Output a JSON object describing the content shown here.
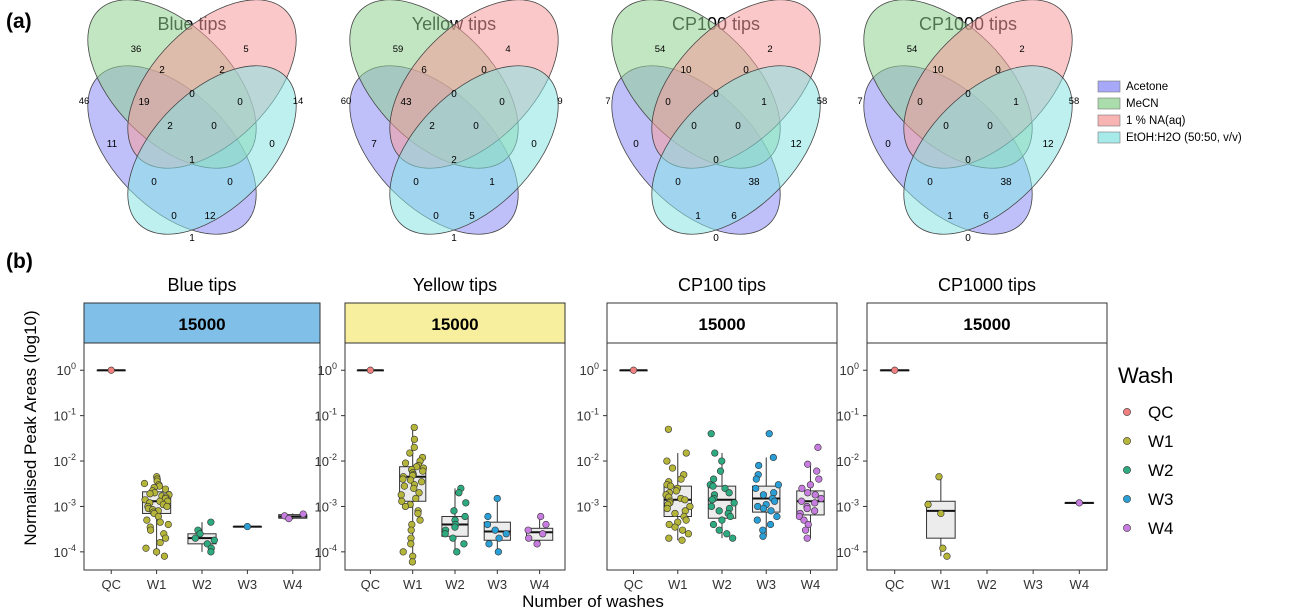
{
  "panel_a": {
    "label": "(a)",
    "legend": [
      {
        "name": "Acetone",
        "color": "#8a8cf5"
      },
      {
        "name": "MeCN",
        "color": "#8fd08f"
      },
      {
        "name": "1 % NA(aq)",
        "color": "#f59a9a"
      },
      {
        "name": "EtOH:H2O (50:50, v/v)",
        "color": "#88e3e3"
      }
    ]
  },
  "panel_b": {
    "label": "(b)",
    "ylabel": "Normalised Peak Areas (log10)",
    "xlabel": "Number of washes",
    "legend_title": "Wash",
    "legend": [
      {
        "name": "QC",
        "color": "#f08080"
      },
      {
        "name": "W1",
        "color": "#b5b53a"
      },
      {
        "name": "W2",
        "color": "#2eaa7f"
      },
      {
        "name": "W3",
        "color": "#2a9fd6"
      },
      {
        "name": "W4",
        "color": "#c77ddf"
      }
    ]
  },
  "chart_data": [
    {
      "type": "venn",
      "title": "Blue tips",
      "sets": [
        "Acetone",
        "MeCN",
        "1 % NA(aq)",
        "EtOH:H2O (50:50, v/v)"
      ],
      "set_totals": [
        46,
        36,
        5,
        14
      ],
      "regions": {
        "Acetone": 11,
        "MeCN": 2,
        "1 % NA(aq)": 2,
        "EtOH:H2O (50:50, v/v)": 0,
        "Acetone&MeCN": 19,
        "MeCN&1 % NA(aq)": 0,
        "1 % NA(aq)&EtOH:H2O (50:50, v/v)": 0,
        "Acetone&1 % NA(aq)": 0,
        "MeCN&EtOH:H2O (50:50, v/v)": 0,
        "Acetone&EtOH:H2O (50:50, v/v)": 1,
        "Acetone&MeCN&1 % NA(aq)": 2,
        "MeCN&1 % NA(aq)&EtOH:H2O (50:50, v/v)": 0,
        "Acetone&1 % NA(aq)&EtOH:H2O (50:50, v/v)": 0,
        "Acetone&MeCN&EtOH:H2O (50:50, v/v)": 12,
        "all": 1
      }
    },
    {
      "type": "venn",
      "title": "Yellow tips",
      "sets": [
        "Acetone",
        "MeCN",
        "1 % NA(aq)",
        "EtOH:H2O (50:50, v/v)"
      ],
      "set_totals": [
        60,
        59,
        4,
        9
      ],
      "regions": {
        "Acetone": 7,
        "MeCN": 6,
        "1 % NA(aq)": 0,
        "EtOH:H2O (50:50, v/v)": 0,
        "Acetone&MeCN": 43,
        "MeCN&1 % NA(aq)": 0,
        "1 % NA(aq)&EtOH:H2O (50:50, v/v)": 0,
        "Acetone&1 % NA(aq)": 0,
        "MeCN&EtOH:H2O (50:50, v/v)": 1,
        "Acetone&EtOH:H2O (50:50, v/v)": 1,
        "Acetone&MeCN&1 % NA(aq)": 2,
        "MeCN&1 % NA(aq)&EtOH:H2O (50:50, v/v)": 0,
        "Acetone&1 % NA(aq)&EtOH:H2O (50:50, v/v)": 0,
        "Acetone&MeCN&EtOH:H2O (50:50, v/v)": 5,
        "all": 2
      }
    },
    {
      "type": "venn",
      "title": "CP100 tips",
      "sets": [
        "Acetone",
        "MeCN",
        "1 % NA(aq)",
        "EtOH:H2O (50:50, v/v)"
      ],
      "set_totals": [
        7,
        54,
        2,
        58
      ],
      "regions": {
        "Acetone": 0,
        "MeCN": 10,
        "1 % NA(aq)": 0,
        "EtOH:H2O (50:50, v/v)": 12,
        "Acetone&MeCN": 0,
        "MeCN&1 % NA(aq)": 0,
        "1 % NA(aq)&EtOH:H2O (50:50, v/v)": 1,
        "Acetone&1 % NA(aq)": 0,
        "MeCN&EtOH:H2O (50:50, v/v)": 38,
        "Acetone&EtOH:H2O (50:50, v/v)": 0,
        "Acetone&MeCN&1 % NA(aq)": 0,
        "MeCN&1 % NA(aq)&EtOH:H2O (50:50, v/v)": 0,
        "Acetone&1 % NA(aq)&EtOH:H2O (50:50, v/v)": 1,
        "Acetone&MeCN&EtOH:H2O (50:50, v/v)": 6,
        "all": 0
      }
    },
    {
      "type": "venn",
      "title": "CP1000 tips",
      "sets": [
        "Acetone",
        "MeCN",
        "1 % NA(aq)",
        "EtOH:H2O (50:50, v/v)"
      ],
      "set_totals": [
        7,
        54,
        2,
        58
      ],
      "regions": {
        "Acetone": 0,
        "MeCN": 10,
        "1 % NA(aq)": 0,
        "EtOH:H2O (50:50, v/v)": 12,
        "Acetone&MeCN": 0,
        "MeCN&1 % NA(aq)": 0,
        "1 % NA(aq)&EtOH:H2O (50:50, v/v)": 1,
        "Acetone&1 % NA(aq)": 0,
        "MeCN&EtOH:H2O (50:50, v/v)": 38,
        "Acetone&EtOH:H2O (50:50, v/v)": 0,
        "Acetone&MeCN&1 % NA(aq)": 0,
        "MeCN&1 % NA(aq)&EtOH:H2O (50:50, v/v)": 0,
        "Acetone&1 % NA(aq)&EtOH:H2O (50:50, v/v)": 1,
        "Acetone&MeCN&EtOH:H2O (50:50, v/v)": 6,
        "all": 0
      }
    },
    {
      "type": "box",
      "title": "Blue tips",
      "strip": "15000",
      "strip_color": "#7fbfe8",
      "categories": [
        "QC",
        "W1",
        "W2",
        "W3",
        "W4"
      ],
      "y_scale": "log10",
      "y_ticks": [
        "10^0",
        "10^-1",
        "10^-2",
        "10^-3",
        "10^-4"
      ],
      "boxes": [
        {
          "cat": "QC",
          "q1": 1.0,
          "median": 1.0,
          "q3": 1.0,
          "lo": 1.0,
          "hi": 1.0
        },
        {
          "cat": "W1",
          "q1": 0.0007,
          "median": 0.0013,
          "q3": 0.0021,
          "lo": 8e-05,
          "hi": 0.0045
        },
        {
          "cat": "W2",
          "q1": 0.00015,
          "median": 0.0002,
          "q3": 0.00025,
          "lo": 0.0001,
          "hi": 0.00045
        },
        {
          "cat": "W3",
          "q1": 0.00036,
          "median": 0.00036,
          "q3": 0.00036,
          "lo": 0.00036,
          "hi": 0.00036
        },
        {
          "cat": "W4",
          "q1": 0.00055,
          "median": 0.0006,
          "q3": 0.00066,
          "lo": 0.00052,
          "hi": 0.0007
        }
      ],
      "points": {
        "QC": [
          1.0
        ],
        "W1": [
          0.0045,
          0.004,
          0.0036,
          0.0032,
          0.003,
          0.0028,
          0.0026,
          0.0024,
          0.0022,
          0.002,
          0.0019,
          0.0018,
          0.0017,
          0.0016,
          0.0015,
          0.0014,
          0.0013,
          0.0013,
          0.0012,
          0.0011,
          0.001,
          0.001,
          0.0009,
          0.00085,
          0.0008,
          0.00075,
          0.0007,
          0.0006,
          0.0005,
          0.00045,
          0.0004,
          0.00035,
          0.0003,
          0.00025,
          0.0002,
          0.00016,
          0.00012,
          0.0001,
          8e-05
        ],
        "W2": [
          0.00045,
          0.0003,
          0.00025,
          0.0002,
          0.00018,
          0.00015,
          0.00012,
          0.0001
        ],
        "W3": [
          0.00036
        ],
        "W4": [
          0.00068,
          0.00062,
          0.00054
        ]
      }
    },
    {
      "type": "box",
      "title": "Yellow tips",
      "strip": "15000",
      "strip_color": "#f7ef9e",
      "categories": [
        "QC",
        "W1",
        "W2",
        "W3",
        "W4"
      ],
      "y_scale": "log10",
      "y_ticks": [
        "10^0",
        "10^-1",
        "10^-2",
        "10^-3",
        "10^-4"
      ],
      "boxes": [
        {
          "cat": "QC",
          "q1": 1.0,
          "median": 1.0,
          "q3": 1.0,
          "lo": 1.0,
          "hi": 1.0
        },
        {
          "cat": "W1",
          "q1": 0.0013,
          "median": 0.0045,
          "q3": 0.0075,
          "lo": 6e-05,
          "hi": 0.055
        },
        {
          "cat": "W2",
          "q1": 0.00022,
          "median": 0.0004,
          "q3": 0.0006,
          "lo": 0.0001,
          "hi": 0.0025
        },
        {
          "cat": "W3",
          "q1": 0.00018,
          "median": 0.00028,
          "q3": 0.00045,
          "lo": 0.0001,
          "hi": 0.0015
        },
        {
          "cat": "W4",
          "q1": 0.00018,
          "median": 0.00027,
          "q3": 0.00033,
          "lo": 0.00014,
          "hi": 0.0006
        }
      ],
      "points": {
        "QC": [
          1.0
        ],
        "W1": [
          0.055,
          0.03,
          0.02,
          0.015,
          0.012,
          0.01,
          0.009,
          0.008,
          0.0075,
          0.007,
          0.0065,
          0.006,
          0.0055,
          0.005,
          0.0048,
          0.0045,
          0.004,
          0.0038,
          0.0035,
          0.003,
          0.0028,
          0.0025,
          0.002,
          0.0018,
          0.0015,
          0.0013,
          0.0011,
          0.001,
          0.0008,
          0.0007,
          0.0005,
          0.0004,
          0.0003,
          0.0002,
          0.00015,
          0.0001,
          8e-05,
          6e-05
        ],
        "W2": [
          0.0025,
          0.002,
          0.0012,
          0.0008,
          0.0006,
          0.0005,
          0.0004,
          0.00035,
          0.0003,
          0.00025,
          0.0002,
          0.00015,
          0.0001
        ],
        "W3": [
          0.0015,
          0.0006,
          0.0004,
          0.0003,
          0.00025,
          0.0002,
          0.00015,
          0.0001
        ],
        "W4": [
          0.0006,
          0.0004,
          0.0003,
          0.00025,
          0.0002,
          0.00015
        ]
      }
    },
    {
      "type": "box",
      "title": "CP100 tips",
      "strip": "15000",
      "strip_color": "#ffffff",
      "categories": [
        "QC",
        "W1",
        "W2",
        "W3",
        "W4"
      ],
      "y_scale": "log10",
      "y_ticks": [
        "10^0",
        "10^-1",
        "10^-2",
        "10^-3"
      ],
      "boxes": [
        {
          "cat": "QC",
          "q1": 1.0,
          "median": 1.0,
          "q3": 1.0,
          "lo": 1.0,
          "hi": 1.0
        },
        {
          "cat": "W1",
          "q1": 0.0006,
          "median": 0.0014,
          "q3": 0.0028,
          "lo": 0.00018,
          "hi": 0.015
        },
        {
          "cat": "W2",
          "q1": 0.00055,
          "median": 0.0014,
          "q3": 0.0028,
          "lo": 0.0002,
          "hi": 0.015
        },
        {
          "cat": "W3",
          "q1": 0.00075,
          "median": 0.0015,
          "q3": 0.0028,
          "lo": 0.00022,
          "hi": 0.012
        },
        {
          "cat": "W4",
          "q1": 0.00065,
          "median": 0.0013,
          "q3": 0.0022,
          "lo": 0.0002,
          "hi": 0.0085
        }
      ],
      "points": {
        "QC": [
          1.0
        ],
        "W1": [
          0.05,
          0.015,
          0.01,
          0.007,
          0.005,
          0.004,
          0.0035,
          0.003,
          0.0028,
          0.0025,
          0.0022,
          0.002,
          0.0018,
          0.0016,
          0.0015,
          0.0014,
          0.0013,
          0.0012,
          0.0011,
          0.001,
          0.0009,
          0.0008,
          0.0007,
          0.0006,
          0.0005,
          0.00045,
          0.0004,
          0.00035,
          0.0003,
          0.00025,
          0.0002,
          0.00018
        ],
        "W2": [
          0.04,
          0.015,
          0.01,
          0.006,
          0.004,
          0.003,
          0.0028,
          0.0025,
          0.002,
          0.0018,
          0.0015,
          0.0014,
          0.0012,
          0.001,
          0.0009,
          0.0008,
          0.0007,
          0.0006,
          0.0005,
          0.0004,
          0.0003,
          0.00025,
          0.0002
        ],
        "W3": [
          0.04,
          0.012,
          0.008,
          0.005,
          0.004,
          0.003,
          0.0025,
          0.002,
          0.0018,
          0.0015,
          0.0013,
          0.0011,
          0.001,
          0.0009,
          0.0008,
          0.0006,
          0.0005,
          0.0004,
          0.0003,
          0.00022
        ],
        "W4": [
          0.02,
          0.0085,
          0.006,
          0.004,
          0.003,
          0.0025,
          0.002,
          0.0018,
          0.0015,
          0.0013,
          0.0012,
          0.001,
          0.0009,
          0.0008,
          0.0007,
          0.0006,
          0.0005,
          0.0004,
          0.0003,
          0.0002
        ]
      }
    },
    {
      "type": "box",
      "title": "CP1000 tips",
      "strip": "15000",
      "strip_color": "#ffffff",
      "categories": [
        "QC",
        "W1",
        "W2",
        "W3",
        "W4"
      ],
      "y_scale": "log10",
      "y_ticks": [
        "10^0",
        "10^-1",
        "10^-2",
        "10^-3",
        "10^-4"
      ],
      "boxes": [
        {
          "cat": "QC",
          "q1": 1.0,
          "median": 1.0,
          "q3": 1.0,
          "lo": 1.0,
          "hi": 1.0
        },
        {
          "cat": "W1",
          "q1": 0.0002,
          "median": 0.0008,
          "q3": 0.0013,
          "lo": 8e-05,
          "hi": 0.0045
        },
        {
          "cat": "W4",
          "q1": 0.0012,
          "median": 0.0012,
          "q3": 0.0012,
          "lo": 0.0012,
          "hi": 0.0012
        }
      ],
      "points": {
        "QC": [
          1.0
        ],
        "W1": [
          0.0045,
          0.0011,
          0.0007,
          0.00012,
          8e-05
        ],
        "W2": [],
        "W3": [],
        "W4": [
          0.0012
        ]
      }
    }
  ]
}
